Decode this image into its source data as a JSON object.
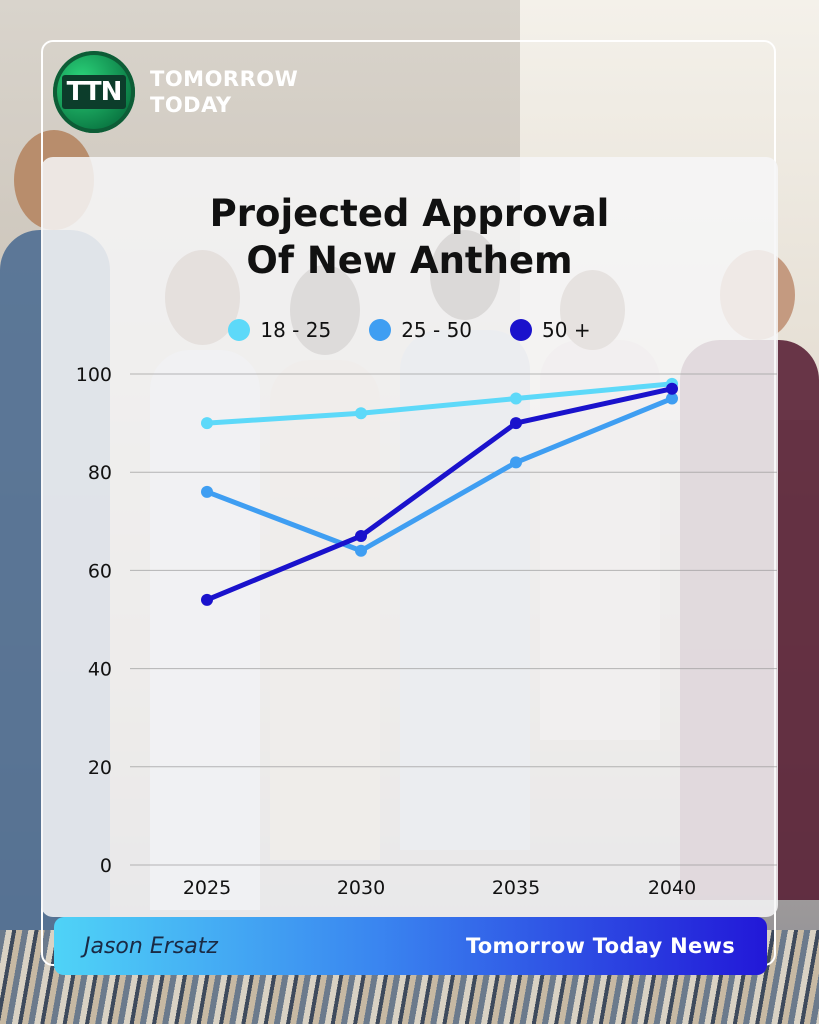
{
  "brand": {
    "logo_text": "TTN",
    "name_line1": "TOMORROW",
    "name_line2": "TODAY"
  },
  "chart_data": {
    "type": "line",
    "title_line1": "Projected Approval",
    "title_line2": "Of New Anthem",
    "x": [
      "2025",
      "2030",
      "2035",
      "2040"
    ],
    "ylim": [
      0,
      100
    ],
    "yticks": [
      0,
      20,
      40,
      60,
      80,
      100
    ],
    "grid": true,
    "legend_position": "top-center",
    "series": [
      {
        "name": "18 - 25",
        "color": "#5dd9f9",
        "values": [
          90,
          92,
          95,
          98
        ]
      },
      {
        "name": "25 - 50",
        "color": "#3f9ef2",
        "values": [
          76,
          64,
          82,
          95
        ]
      },
      {
        "name": "50 +",
        "color": "#1a12cc",
        "values": [
          54,
          67,
          90,
          97
        ]
      }
    ]
  },
  "footer": {
    "author": "Jason Ersatz",
    "source": "Tomorrow Today News"
  }
}
